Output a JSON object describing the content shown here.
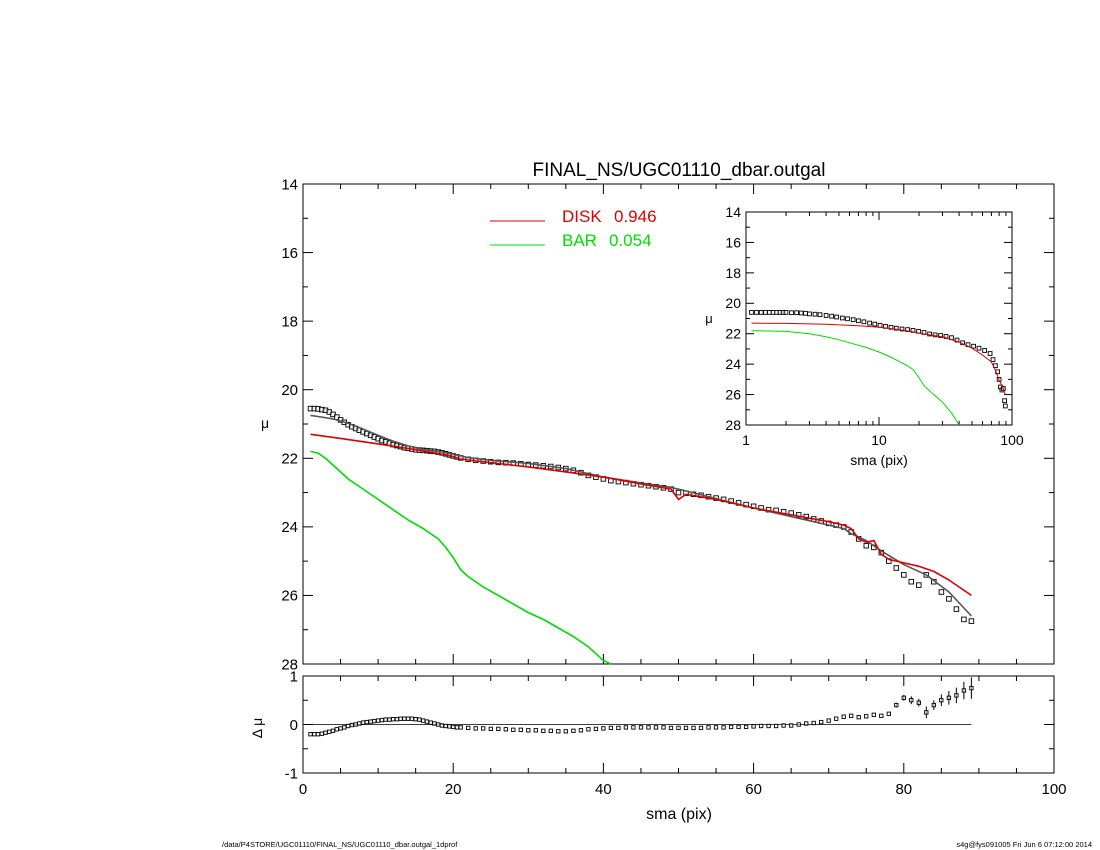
{
  "title": "FINAL_NS/UGC01110_dbar.outgal",
  "footer_left": "/data/P4STORE/UGC01110/FINAL_NS/UGC01110_dbar.outgal_1dprof",
  "footer_right": "s4g@fys091005  Fri Jun  6 07:12:00 2014",
  "colors": {
    "disk": "#dd0000",
    "bar": "#00dd00",
    "data": "#000000",
    "total": "#555555"
  },
  "legend": [
    {
      "name": "DISK",
      "value": "0.946",
      "color": "#dd0000"
    },
    {
      "name": "BAR",
      "value": "0.054",
      "color": "#00dd00"
    }
  ],
  "chart_data": [
    {
      "id": "main",
      "type": "scatter",
      "xlabel": "",
      "ylabel": "μ",
      "xlim": [
        0,
        100
      ],
      "ylim": [
        28,
        14
      ],
      "y_inverted": true,
      "yticks": [
        14,
        16,
        18,
        20,
        22,
        24,
        26,
        28
      ],
      "xticks": [
        0,
        20,
        40,
        60,
        80,
        100
      ],
      "show_x_ticklabels": false,
      "series": [
        {
          "kind": "points",
          "x": [
            1,
            1.5,
            2,
            2.5,
            3,
            3.5,
            4,
            4.5,
            5,
            5.5,
            6,
            6.5,
            7,
            7.5,
            8,
            8.5,
            9,
            9.5,
            10,
            10.5,
            11,
            11.5,
            12,
            12.5,
            13,
            13.5,
            14,
            14.5,
            15,
            15.5,
            16,
            16.5,
            17,
            17.5,
            18,
            18.5,
            19,
            19.5,
            20,
            20.5,
            21,
            22,
            23,
            24,
            25,
            26,
            27,
            28,
            29,
            30,
            31,
            32,
            33,
            34,
            35,
            36,
            37,
            38,
            39,
            40,
            41,
            42,
            43,
            44,
            45,
            46,
            47,
            48,
            49,
            50,
            51,
            52,
            53,
            54,
            55,
            56,
            57,
            58,
            59,
            60,
            61,
            62,
            63,
            64,
            65,
            66,
            67,
            68,
            69,
            70,
            71,
            72,
            73,
            74,
            75,
            76,
            77,
            78,
            79,
            80,
            81,
            82,
            83,
            84,
            85,
            86,
            87,
            88,
            89
          ],
          "y": [
            20.55,
            20.55,
            20.56,
            20.58,
            20.6,
            20.65,
            20.72,
            20.8,
            20.88,
            20.95,
            21.02,
            21.08,
            21.13,
            21.18,
            21.23,
            21.28,
            21.33,
            21.38,
            21.43,
            21.48,
            21.52,
            21.56,
            21.6,
            21.63,
            21.66,
            21.69,
            21.71,
            21.73,
            21.75,
            21.76,
            21.77,
            21.78,
            21.79,
            21.8,
            21.82,
            21.84,
            21.87,
            21.9,
            21.93,
            21.96,
            21.99,
            22.03,
            22.06,
            22.08,
            22.1,
            22.12,
            22.13,
            22.14,
            22.16,
            22.18,
            22.2,
            22.22,
            22.24,
            22.27,
            22.3,
            22.35,
            22.42,
            22.5,
            22.55,
            22.6,
            22.65,
            22.68,
            22.71,
            22.74,
            22.77,
            22.8,
            22.83,
            22.86,
            22.9,
            23.0,
            23.02,
            23.05,
            23.08,
            23.12,
            23.16,
            23.2,
            23.25,
            23.3,
            23.35,
            23.4,
            23.45,
            23.5,
            23.52,
            23.56,
            23.6,
            23.65,
            23.7,
            23.77,
            23.83,
            23.9,
            23.95,
            24.0,
            24.15,
            24.35,
            24.55,
            24.6,
            24.75,
            25.0,
            25.2,
            25.4,
            25.6,
            25.7,
            25.4,
            25.6,
            25.9,
            26.1,
            26.4,
            26.7,
            26.75
          ],
          "color": "#000000"
        },
        {
          "kind": "line",
          "x": [
            1,
            2,
            4,
            6,
            8,
            10,
            12,
            14,
            16,
            18,
            20,
            22,
            25,
            30,
            35,
            40,
            45,
            49,
            50,
            51,
            55,
            60,
            65,
            70,
            72,
            73,
            75,
            76,
            77,
            80,
            83,
            86,
            89
          ],
          "y": [
            20.75,
            20.78,
            20.85,
            20.98,
            21.15,
            21.33,
            21.5,
            21.64,
            21.74,
            21.8,
            21.88,
            21.98,
            22.06,
            22.15,
            22.3,
            22.55,
            22.72,
            22.85,
            22.9,
            22.95,
            23.18,
            23.45,
            23.7,
            23.95,
            24.05,
            24.2,
            24.4,
            24.55,
            24.7,
            25.1,
            25.4,
            25.9,
            26.6
          ],
          "color": "#555555"
        },
        {
          "name": "DISK",
          "kind": "line",
          "x": [
            1,
            5,
            10,
            15,
            19,
            20,
            21,
            22,
            25,
            30,
            35,
            40,
            45,
            49,
            50,
            51,
            55,
            60,
            65,
            70,
            72,
            73,
            74,
            75,
            76,
            77,
            78,
            80,
            82,
            84,
            86,
            89
          ],
          "y": [
            21.3,
            21.42,
            21.58,
            21.75,
            21.9,
            21.95,
            22.02,
            22.05,
            22.13,
            22.25,
            22.4,
            22.55,
            22.75,
            22.9,
            23.2,
            23.05,
            23.2,
            23.45,
            23.65,
            23.85,
            23.95,
            24.05,
            24.35,
            24.45,
            24.4,
            24.8,
            24.95,
            25.05,
            25.15,
            25.3,
            25.55,
            26.0
          ],
          "color": "#dd0000"
        },
        {
          "name": "BAR",
          "kind": "line",
          "x": [
            1,
            2,
            3,
            4,
            5,
            6,
            8,
            10,
            12,
            14,
            16,
            18,
            19,
            20,
            21,
            22,
            24,
            26,
            28,
            30,
            32,
            34,
            36,
            38,
            39,
            40,
            41
          ],
          "y": [
            21.8,
            21.85,
            22.0,
            22.2,
            22.4,
            22.6,
            22.9,
            23.2,
            23.5,
            23.8,
            24.05,
            24.35,
            24.6,
            24.9,
            25.25,
            25.45,
            25.75,
            26.0,
            26.25,
            26.5,
            26.7,
            26.95,
            27.2,
            27.5,
            27.7,
            27.9,
            28.0
          ],
          "color": "#00dd00"
        }
      ]
    },
    {
      "id": "inset",
      "type": "scatter",
      "xlabel": "sma (pix)",
      "ylabel": "μ",
      "xscale": "log",
      "xlim": [
        1,
        100
      ],
      "ylim": [
        28,
        14
      ],
      "y_inverted": true,
      "yticks": [
        14,
        16,
        18,
        20,
        22,
        24,
        26,
        28
      ],
      "xticks": [
        1,
        10,
        100
      ],
      "series": [
        {
          "kind": "points",
          "x": [
            1.1,
            1.2,
            1.3,
            1.4,
            1.5,
            1.6,
            1.7,
            1.8,
            1.9,
            2.0,
            2.2,
            2.4,
            2.6,
            2.8,
            3.0,
            3.3,
            3.6,
            4.0,
            4.4,
            4.8,
            5.3,
            5.8,
            6.4,
            7.0,
            7.7,
            8.5,
            9.3,
            10.2,
            11.2,
            12.3,
            13.5,
            14.9,
            16.4,
            18.0,
            19.8,
            21.8,
            24.0,
            26.4,
            29.0,
            31.9,
            35.1,
            38.6,
            42.5,
            46.7,
            51.4,
            56.5,
            62.2,
            68.4,
            72.0,
            75.0,
            78.0,
            80.0,
            82.0,
            84.0,
            86.0,
            88.0,
            89.0
          ],
          "y": [
            20.6,
            20.6,
            20.6,
            20.6,
            20.6,
            20.6,
            20.6,
            20.6,
            20.6,
            20.6,
            20.62,
            20.62,
            20.64,
            20.66,
            20.7,
            20.72,
            20.75,
            20.8,
            20.85,
            20.9,
            20.97,
            21.02,
            21.08,
            21.15,
            21.22,
            21.3,
            21.37,
            21.45,
            21.52,
            21.58,
            21.64,
            21.69,
            21.73,
            21.78,
            21.84,
            21.92,
            22.02,
            22.08,
            22.12,
            22.18,
            22.26,
            22.42,
            22.6,
            22.72,
            22.82,
            22.95,
            23.1,
            23.3,
            23.7,
            24.1,
            24.5,
            25.0,
            25.5,
            25.7,
            25.6,
            26.4,
            26.75
          ],
          "color": "#000000"
        },
        {
          "name": "DISK",
          "kind": "line",
          "x": [
            1.1,
            2,
            4,
            7,
            10,
            14,
            18,
            20,
            25,
            30,
            40,
            50,
            60,
            70,
            75,
            80,
            85,
            89
          ],
          "y": [
            21.3,
            21.32,
            21.38,
            21.48,
            21.58,
            21.72,
            21.88,
            21.96,
            22.1,
            22.2,
            22.55,
            22.95,
            23.4,
            23.85,
            24.4,
            25.05,
            25.5,
            26.0
          ],
          "color": "#dd0000"
        },
        {
          "name": "BAR",
          "kind": "line",
          "x": [
            1.1,
            2,
            3,
            4,
            5,
            6,
            8,
            10,
            12,
            14,
            16,
            18,
            20,
            22,
            25,
            30,
            35,
            40
          ],
          "y": [
            21.8,
            21.85,
            22.0,
            22.2,
            22.4,
            22.6,
            22.9,
            23.2,
            23.5,
            23.8,
            24.05,
            24.35,
            24.9,
            25.45,
            25.9,
            26.5,
            27.2,
            28.0
          ],
          "color": "#00dd00"
        }
      ]
    },
    {
      "id": "residual",
      "type": "scatter",
      "xlabel": "sma (pix)",
      "ylabel": "Δ μ",
      "xlim": [
        0,
        100
      ],
      "ylim": [
        -1.0,
        1.0
      ],
      "yticks": [
        -1,
        0,
        1
      ],
      "xticks": [
        0,
        20,
        40,
        60,
        80,
        100
      ],
      "zero_line": true,
      "series": [
        {
          "kind": "points",
          "x": [
            1,
            1.5,
            2,
            2.5,
            3,
            3.5,
            4,
            4.5,
            5,
            5.5,
            6,
            6.5,
            7,
            7.5,
            8,
            8.5,
            9,
            9.5,
            10,
            10.5,
            11,
            11.5,
            12,
            12.5,
            13,
            13.5,
            14,
            14.5,
            15,
            15.5,
            16,
            16.5,
            17,
            17.5,
            18,
            18.5,
            19,
            19.5,
            20,
            20.5,
            21,
            22,
            23,
            24,
            25,
            26,
            27,
            28,
            29,
            30,
            31,
            32,
            33,
            34,
            35,
            36,
            37,
            38,
            39,
            40,
            41,
            42,
            43,
            44,
            45,
            46,
            47,
            48,
            49,
            50,
            51,
            52,
            53,
            54,
            55,
            56,
            57,
            58,
            59,
            60,
            61,
            62,
            63,
            64,
            65,
            66,
            67,
            68,
            69,
            70,
            71,
            72,
            73,
            74,
            75,
            76,
            77,
            78,
            79,
            80,
            81,
            82,
            83,
            84,
            85,
            86,
            87,
            88,
            89
          ],
          "y": [
            -0.2,
            -0.2,
            -0.2,
            -0.19,
            -0.17,
            -0.15,
            -0.13,
            -0.1,
            -0.08,
            -0.06,
            -0.03,
            -0.01,
            0.0,
            0.02,
            0.04,
            0.05,
            0.06,
            0.07,
            0.08,
            0.09,
            0.1,
            0.1,
            0.11,
            0.11,
            0.12,
            0.12,
            0.12,
            0.12,
            0.11,
            0.1,
            0.08,
            0.06,
            0.04,
            0.02,
            0.0,
            -0.02,
            -0.03,
            -0.04,
            -0.05,
            -0.06,
            -0.06,
            -0.07,
            -0.08,
            -0.08,
            -0.09,
            -0.09,
            -0.1,
            -0.11,
            -0.11,
            -0.12,
            -0.12,
            -0.13,
            -0.13,
            -0.14,
            -0.14,
            -0.13,
            -0.12,
            -0.1,
            -0.09,
            -0.08,
            -0.07,
            -0.07,
            -0.06,
            -0.06,
            -0.06,
            -0.06,
            -0.06,
            -0.06,
            -0.07,
            -0.07,
            -0.07,
            -0.07,
            -0.07,
            -0.06,
            -0.06,
            -0.06,
            -0.05,
            -0.05,
            -0.05,
            -0.04,
            -0.03,
            -0.03,
            -0.03,
            -0.02,
            -0.02,
            0.0,
            0.02,
            0.03,
            0.05,
            0.08,
            0.12,
            0.16,
            0.18,
            0.15,
            0.17,
            0.2,
            0.18,
            0.22,
            0.4,
            0.55,
            0.5,
            0.45,
            0.25,
            0.4,
            0.5,
            0.55,
            0.6,
            0.7,
            0.75
          ],
          "errors": [
            0,
            0,
            0,
            0,
            0,
            0,
            0,
            0,
            0,
            0,
            0,
            0,
            0,
            0,
            0,
            0,
            0,
            0,
            0,
            0,
            0,
            0,
            0,
            0,
            0,
            0,
            0,
            0,
            0,
            0,
            0,
            0,
            0,
            0,
            0,
            0,
            0,
            0,
            0,
            0,
            0,
            0,
            0,
            0,
            0,
            0,
            0,
            0,
            0,
            0,
            0,
            0,
            0,
            0,
            0,
            0,
            0,
            0,
            0,
            0,
            0,
            0,
            0,
            0,
            0,
            0,
            0,
            0,
            0,
            0,
            0,
            0,
            0,
            0,
            0,
            0,
            0,
            0,
            0,
            0,
            0,
            0,
            0,
            0,
            0,
            0,
            0,
            0,
            0,
            0,
            0,
            0,
            0,
            0,
            0,
            0,
            0,
            0,
            0.05,
            0.06,
            0.08,
            0.08,
            0.12,
            0.1,
            0.12,
            0.14,
            0.16,
            0.18,
            0.22
          ],
          "color": "#000000"
        }
      ]
    }
  ]
}
